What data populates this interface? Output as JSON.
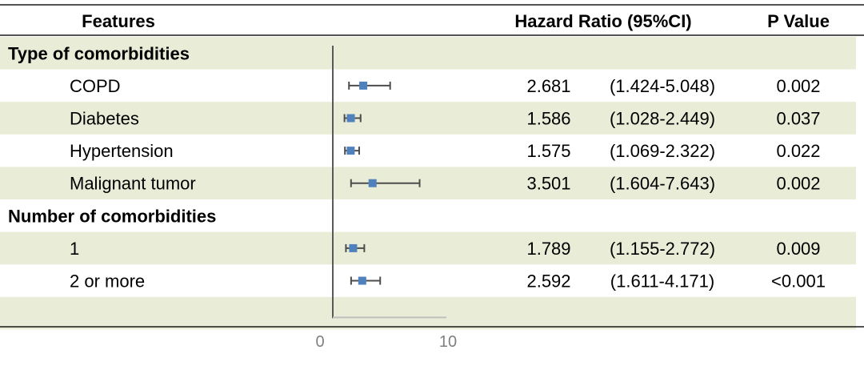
{
  "header": {
    "features": "Features",
    "hazard_ratio": "Hazard Ratio (95%CI)",
    "p_value": "P Value"
  },
  "colors": {
    "band": "#e9ecd6",
    "marker": "#4f81bd",
    "whisker": "#4d4d4d",
    "axis": "#595959",
    "rule": "#1a1a1a"
  },
  "chart_data": {
    "type": "forest",
    "xlim": [
      0,
      10
    ],
    "xticks": [
      "0",
      "10"
    ],
    "reference_line": 0,
    "groups": [
      {
        "title": "Type of comorbidities",
        "rows": [
          {
            "label": "COPD",
            "hr": 2.681,
            "lo": 1.424,
            "hi": 5.048,
            "hr_text": "2.681",
            "ci_text": "(1.424-5.048)",
            "p_text": "0.002"
          },
          {
            "label": "Diabetes",
            "hr": 1.586,
            "lo": 1.028,
            "hi": 2.449,
            "hr_text": "1.586",
            "ci_text": "(1.028-2.449)",
            "p_text": "0.037"
          },
          {
            "label": "Hypertension",
            "hr": 1.575,
            "lo": 1.069,
            "hi": 2.322,
            "hr_text": "1.575",
            "ci_text": "(1.069-2.322)",
            "p_text": "0.022"
          },
          {
            "label": "Malignant tumor",
            "hr": 3.501,
            "lo": 1.604,
            "hi": 7.643,
            "hr_text": "3.501",
            "ci_text": "(1.604-7.643)",
            "p_text": "0.002"
          }
        ]
      },
      {
        "title": "Number of comorbidities",
        "rows": [
          {
            "label": "1",
            "hr": 1.789,
            "lo": 1.155,
            "hi": 2.772,
            "hr_text": "1.789",
            "ci_text": "(1.155-2.772)",
            "p_text": "0.009"
          },
          {
            "label": "2 or more",
            "hr": 2.592,
            "lo": 1.611,
            "hi": 4.171,
            "hr_text": "2.592",
            "ci_text": "(1.611-4.171)",
            "p_text": "<0.001"
          }
        ]
      }
    ]
  }
}
